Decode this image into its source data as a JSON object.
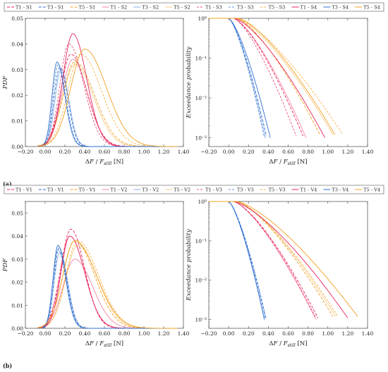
{
  "panels": [
    {
      "label": "(a)",
      "legend": [
        "T1 - S1",
        "T3 - S1",
        "T5 - S1",
        "T1 - S2",
        "T3 - S2",
        "T5 - S2",
        "T1 - S3",
        "T3 - S3",
        "T5 - S3",
        "T1 - S4",
        "T3 - S4",
        "T5 - S4"
      ]
    },
    {
      "label": "(b)",
      "legend": [
        "T1 - V1",
        "T3 - V1",
        "T5 - V1",
        "T1 - V2",
        "T3 - V2",
        "T5 - V2",
        "T1 - V3",
        "T3 - V3",
        "T5 - V3",
        "T1 - V4",
        "T3 - V4",
        "T5 - V4"
      ]
    }
  ],
  "series_colors": {
    "T1": "#e8245a",
    "T3": "#2f6fd0",
    "T5": "#f0a020"
  },
  "series_dash": {
    "1": "4,2",
    "2": "",
    "3": "3,2",
    "4": ""
  },
  "series_opacity": {
    "1": 1,
    "2": 0.55,
    "3": 0.8,
    "4": 1
  },
  "chart_data": [
    {
      "type": "line",
      "panel": "(a)",
      "xlabel": "ΔF / F_still [N]",
      "ylabel": "PDF",
      "xlim": [
        -0.2,
        1.4
      ],
      "ylim": [
        0,
        0.05
      ],
      "xticks": [
        "−0.20",
        "0.00",
        "0.20",
        "0.40",
        "0.60",
        "0.80",
        "1.00",
        "1.20",
        "1.40"
      ],
      "yticks": [
        "0.00",
        "0.01",
        "0.02",
        "0.03",
        "0.04",
        "0.05"
      ],
      "series": [
        {
          "name": "T1 - S1",
          "peak": [
            0.26,
            0.036
          ],
          "sl": 0.1,
          "sr": 0.16
        },
        {
          "name": "T3 - S1",
          "peak": [
            0.15,
            0.031
          ],
          "sl": 0.06,
          "sr": 0.08
        },
        {
          "name": "T5 - S1",
          "peak": [
            0.3,
            0.033
          ],
          "sl": 0.12,
          "sr": 0.2
        },
        {
          "name": "T1 - S2",
          "peak": [
            0.28,
            0.034
          ],
          "sl": 0.11,
          "sr": 0.15
        },
        {
          "name": "T3 - S2",
          "peak": [
            0.16,
            0.03
          ],
          "sl": 0.06,
          "sr": 0.08
        },
        {
          "name": "T5 - S2",
          "peak": [
            0.3,
            0.032
          ],
          "sl": 0.12,
          "sr": 0.19
        },
        {
          "name": "T1 - S3",
          "peak": [
            0.24,
            0.04
          ],
          "sl": 0.09,
          "sr": 0.15
        },
        {
          "name": "T3 - S3",
          "peak": [
            0.13,
            0.032
          ],
          "sl": 0.05,
          "sr": 0.08
        },
        {
          "name": "T5 - S3",
          "peak": [
            0.36,
            0.036
          ],
          "sl": 0.13,
          "sr": 0.21
        },
        {
          "name": "T1 - S4",
          "peak": [
            0.28,
            0.044
          ],
          "sl": 0.1,
          "sr": 0.14
        },
        {
          "name": "T3 - S4",
          "peak": [
            0.12,
            0.033
          ],
          "sl": 0.05,
          "sr": 0.08
        },
        {
          "name": "T5 - S4",
          "peak": [
            0.4,
            0.038
          ],
          "sl": 0.14,
          "sr": 0.22
        }
      ]
    },
    {
      "type": "line",
      "panel": "(a)",
      "xlabel": "ΔF / F_still [N]",
      "ylabel": "Exceedance probability",
      "scale_y": "log",
      "xlim": [
        -0.2,
        1.4
      ],
      "ylim": [
        0.0006,
        1
      ],
      "xticks": [
        "−0.20",
        "0.00",
        "0.20",
        "0.40",
        "0.60",
        "0.80",
        "1.00",
        "1.20",
        "1.40"
      ],
      "yticks": [
        "10⁰",
        "10⁻¹",
        "10⁻²",
        "10⁻³"
      ],
      "series": [
        {
          "name": "T1 - S1",
          "start": 0.05,
          "end": 0.75,
          "min": 0.0011
        },
        {
          "name": "T3 - S1",
          "start": 0.0,
          "end": 0.38,
          "min": 0.0011
        },
        {
          "name": "T5 - S1",
          "start": 0.08,
          "end": 0.92,
          "min": 0.0012
        },
        {
          "name": "T1 - S2",
          "start": 0.05,
          "end": 0.78,
          "min": 0.001
        },
        {
          "name": "T3 - S2",
          "start": 0.0,
          "end": 0.37,
          "min": 0.001
        },
        {
          "name": "T5 - S2",
          "start": 0.08,
          "end": 1.05,
          "min": 0.0012
        },
        {
          "name": "T1 - S3",
          "start": 0.05,
          "end": 0.68,
          "min": 0.0011
        },
        {
          "name": "T3 - S3",
          "start": 0.0,
          "end": 0.36,
          "min": 0.001
        },
        {
          "name": "T5 - S3",
          "start": 0.08,
          "end": 1.15,
          "min": 0.0012
        },
        {
          "name": "T1 - S4",
          "start": 0.06,
          "end": 0.97,
          "min": 0.001
        },
        {
          "name": "T3 - S4",
          "start": 0.0,
          "end": 0.42,
          "min": 0.001
        },
        {
          "name": "T5 - S4",
          "start": 0.1,
          "end": 1.07,
          "min": 0.0012
        }
      ]
    },
    {
      "type": "line",
      "panel": "(b)",
      "xlabel": "ΔF / F_still [N]",
      "ylabel": "PDF",
      "xlim": [
        -0.2,
        1.4
      ],
      "ylim": [
        0,
        0.055
      ],
      "xticks": [
        "−0.20",
        "0.00",
        "0.20",
        "0.40",
        "0.60",
        "0.80",
        "1.00",
        "1.20",
        "1.40"
      ],
      "yticks": [
        "0.00",
        "0.01",
        "0.02",
        "0.03",
        "0.04",
        "0.05"
      ],
      "series": [
        {
          "name": "T1 - V1",
          "peak": [
            0.26,
            0.043
          ],
          "sl": 0.1,
          "sr": 0.14
        },
        {
          "name": "T3 - V1",
          "peak": [
            0.14,
            0.035
          ],
          "sl": 0.05,
          "sr": 0.08
        },
        {
          "name": "T5 - V1",
          "peak": [
            0.3,
            0.038
          ],
          "sl": 0.12,
          "sr": 0.2
        },
        {
          "name": "T1 - V2",
          "peak": [
            0.3,
            0.03
          ],
          "sl": 0.12,
          "sr": 0.18
        },
        {
          "name": "T3 - V2",
          "peak": [
            0.15,
            0.033
          ],
          "sl": 0.06,
          "sr": 0.08
        },
        {
          "name": "T5 - V2",
          "peak": [
            0.33,
            0.036
          ],
          "sl": 0.12,
          "sr": 0.2
        },
        {
          "name": "T1 - V3",
          "peak": [
            0.25,
            0.04
          ],
          "sl": 0.1,
          "sr": 0.15
        },
        {
          "name": "T3 - V3",
          "peak": [
            0.13,
            0.034
          ],
          "sl": 0.05,
          "sr": 0.08
        },
        {
          "name": "T5 - V3",
          "peak": [
            0.33,
            0.038
          ],
          "sl": 0.12,
          "sr": 0.21
        },
        {
          "name": "T1 - V4",
          "peak": [
            0.25,
            0.04
          ],
          "sl": 0.09,
          "sr": 0.15
        },
        {
          "name": "T3 - V4",
          "peak": [
            0.13,
            0.036
          ],
          "sl": 0.05,
          "sr": 0.08
        },
        {
          "name": "T5 - V4",
          "peak": [
            0.3,
            0.038
          ],
          "sl": 0.12,
          "sr": 0.22
        }
      ]
    },
    {
      "type": "line",
      "panel": "(b)",
      "xlabel": "ΔF / F_still [N]",
      "ylabel": "Exceedance probability",
      "scale_y": "log",
      "xlim": [
        -0.2,
        1.4
      ],
      "ylim": [
        0.0006,
        1
      ],
      "xticks": [
        "−0.20",
        "0.00",
        "0.20",
        "0.40",
        "0.60",
        "0.80",
        "1.00",
        "1.20",
        "1.40"
      ],
      "yticks": [
        "10⁰",
        "10⁻¹",
        "10⁻²",
        "10⁻³"
      ],
      "series": [
        {
          "name": "T1 - V1",
          "start": 0.05,
          "end": 0.9,
          "min": 0.0011
        },
        {
          "name": "T3 - V1",
          "start": 0.0,
          "end": 0.37,
          "min": 0.0011
        },
        {
          "name": "T5 - V1",
          "start": 0.08,
          "end": 1.05,
          "min": 0.0012
        },
        {
          "name": "T1 - V2",
          "start": 0.05,
          "end": 0.88,
          "min": 0.001
        },
        {
          "name": "T3 - V2",
          "start": 0.0,
          "end": 0.36,
          "min": 0.001
        },
        {
          "name": "T5 - V2",
          "start": 0.08,
          "end": 1.08,
          "min": 0.0012
        },
        {
          "name": "T1 - V3",
          "start": 0.05,
          "end": 0.88,
          "min": 0.0011
        },
        {
          "name": "T3 - V3",
          "start": 0.0,
          "end": 0.38,
          "min": 0.001
        },
        {
          "name": "T5 - V3",
          "start": 0.08,
          "end": 1.1,
          "min": 0.0012
        },
        {
          "name": "T1 - V4",
          "start": 0.05,
          "end": 1.2,
          "min": 0.0011
        },
        {
          "name": "T3 - V4",
          "start": 0.0,
          "end": 0.36,
          "min": 0.001
        },
        {
          "name": "T5 - V4",
          "start": 0.08,
          "end": 1.3,
          "min": 0.0012
        }
      ]
    }
  ]
}
